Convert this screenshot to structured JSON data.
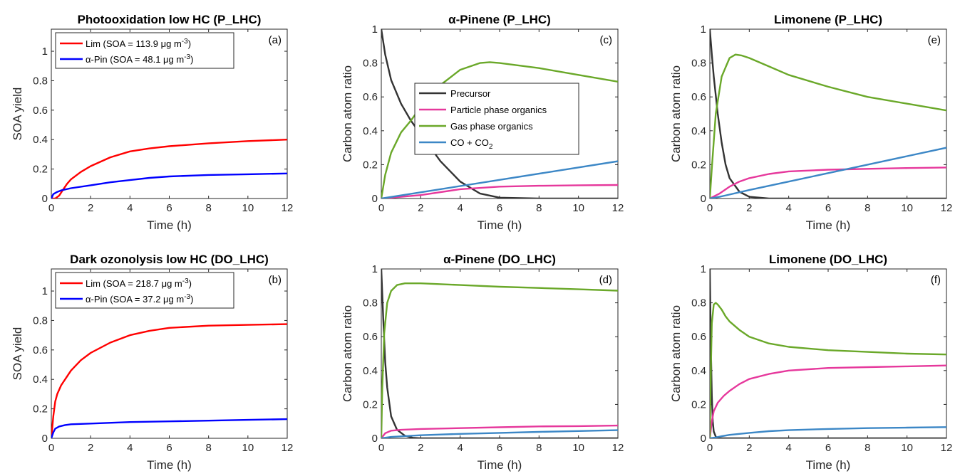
{
  "chart_data": [
    {
      "id": "a",
      "type": "line",
      "title": "Photooxidation low HC (P_LHC)",
      "panel_label": "(a)",
      "xlabel": "Time (h)",
      "ylabel": "SOA yield",
      "xlim": [
        0,
        12
      ],
      "ylim": [
        0,
        1.15
      ],
      "xticks": [
        0,
        2,
        4,
        6,
        8,
        10,
        12
      ],
      "yticks": [
        0,
        0.2,
        0.4,
        0.6,
        0.8,
        1
      ],
      "ytick_labels": [
        "0",
        "0.2",
        "0.4",
        "0.6",
        "0.8",
        "1"
      ],
      "legend": "top-left",
      "series": [
        {
          "name": "Lim (SOA = 113.9 μg m-3)",
          "color": "#ff0000",
          "x": [
            0,
            0.2,
            0.4,
            0.6,
            0.8,
            1.0,
            1.5,
            2,
            3,
            4,
            5,
            6,
            8,
            10,
            12
          ],
          "y": [
            0,
            0.0,
            0.02,
            0.06,
            0.1,
            0.13,
            0.18,
            0.22,
            0.28,
            0.32,
            0.34,
            0.355,
            0.375,
            0.39,
            0.4
          ]
        },
        {
          "name": "α-Pin (SOA = 48.1 μg m-3)",
          "color": "#0000ff",
          "x": [
            0,
            0.1,
            0.3,
            0.5,
            1,
            2,
            3,
            4,
            5,
            6,
            8,
            10,
            12
          ],
          "y": [
            0,
            0.03,
            0.045,
            0.055,
            0.07,
            0.09,
            0.11,
            0.125,
            0.14,
            0.15,
            0.16,
            0.165,
            0.17
          ]
        }
      ]
    },
    {
      "id": "b",
      "type": "line",
      "title": "Dark ozonolysis low HC (DO_LHC)",
      "panel_label": "(b)",
      "xlabel": "Time (h)",
      "ylabel": "SOA yield",
      "xlim": [
        0,
        12
      ],
      "ylim": [
        0,
        1.15
      ],
      "xticks": [
        0,
        2,
        4,
        6,
        8,
        10,
        12
      ],
      "yticks": [
        0,
        0.2,
        0.4,
        0.6,
        0.8,
        1
      ],
      "ytick_labels": [
        "0",
        "0.2",
        "0.4",
        "0.6",
        "0.8",
        "1"
      ],
      "legend": "top-left",
      "series": [
        {
          "name": "Lim (SOA = 218.7 μg m-3)",
          "color": "#ff0000",
          "x": [
            0,
            0.1,
            0.2,
            0.3,
            0.5,
            0.8,
            1,
            1.5,
            2,
            3,
            4,
            5,
            6,
            8,
            10,
            12
          ],
          "y": [
            0,
            0.15,
            0.25,
            0.3,
            0.36,
            0.42,
            0.46,
            0.53,
            0.58,
            0.65,
            0.7,
            0.73,
            0.75,
            0.765,
            0.77,
            0.775
          ]
        },
        {
          "name": "α-Pin (SOA = 37.2 μg m-3)",
          "color": "#0000ff",
          "x": [
            0,
            0.1,
            0.2,
            0.4,
            0.7,
            1,
            2,
            4,
            6,
            8,
            10,
            12
          ],
          "y": [
            0,
            0.04,
            0.065,
            0.08,
            0.09,
            0.095,
            0.1,
            0.11,
            0.115,
            0.12,
            0.125,
            0.13
          ]
        }
      ]
    },
    {
      "id": "c",
      "type": "line",
      "title": "α-Pinene (P_LHC)",
      "panel_label": "(c)",
      "xlabel": "Time (h)",
      "ylabel": "Carbon atom ratio",
      "xlim": [
        0,
        12
      ],
      "ylim": [
        0,
        1
      ],
      "xticks": [
        0,
        2,
        4,
        6,
        8,
        10,
        12
      ],
      "yticks": [
        0,
        0.2,
        0.4,
        0.6,
        0.8,
        1
      ],
      "ytick_labels": [
        "0",
        "0.2",
        "0.4",
        "0.6",
        "0.8",
        "1"
      ],
      "legend": "center",
      "series": [
        {
          "name": "Precursor",
          "color": "#333333",
          "x": [
            0,
            0.2,
            0.5,
            1,
            1.5,
            2,
            3,
            4,
            5,
            6,
            8,
            12
          ],
          "y": [
            1,
            0.85,
            0.7,
            0.56,
            0.46,
            0.38,
            0.22,
            0.1,
            0.03,
            0.005,
            0,
            0
          ]
        },
        {
          "name": "Particle phase organics",
          "color": "#e6389c",
          "x": [
            0,
            2,
            4,
            6,
            8,
            10,
            12
          ],
          "y": [
            0,
            0.02,
            0.055,
            0.07,
            0.075,
            0.078,
            0.08
          ]
        },
        {
          "name": "Gas phase organics",
          "color": "#6aa829",
          "x": [
            0,
            0.2,
            0.5,
            1,
            1.5,
            2,
            3,
            4,
            5,
            5.5,
            6,
            8,
            10,
            12
          ],
          "y": [
            0,
            0.14,
            0.27,
            0.39,
            0.46,
            0.54,
            0.67,
            0.76,
            0.8,
            0.805,
            0.8,
            0.77,
            0.73,
            0.69
          ]
        },
        {
          "name": "CO + CO2",
          "color": "#3c87c6",
          "x": [
            0,
            12
          ],
          "y": [
            0,
            0.22
          ]
        }
      ]
    },
    {
      "id": "d",
      "type": "line",
      "title": "α-Pinene (DO_LHC)",
      "panel_label": "(d)",
      "xlabel": "Time (h)",
      "ylabel": "Carbon atom ratio",
      "xlim": [
        0,
        12
      ],
      "ylim": [
        0,
        1
      ],
      "xticks": [
        0,
        2,
        4,
        6,
        8,
        10,
        12
      ],
      "yticks": [
        0,
        0.2,
        0.4,
        0.6,
        0.8,
        1
      ],
      "ytick_labels": [
        "0",
        "0.2",
        "0.4",
        "0.6",
        "0.8",
        "1"
      ],
      "legend": "none",
      "series": [
        {
          "name": "Precursor",
          "color": "#333333",
          "x": [
            0,
            0.1,
            0.2,
            0.3,
            0.5,
            0.8,
            1.2,
            1.6,
            2,
            12
          ],
          "y": [
            1,
            0.7,
            0.45,
            0.3,
            0.13,
            0.05,
            0.015,
            0.003,
            0,
            0
          ]
        },
        {
          "name": "Particle phase organics",
          "color": "#e6389c",
          "x": [
            0,
            0.2,
            0.5,
            1,
            2,
            4,
            6,
            8,
            10,
            12
          ],
          "y": [
            0,
            0.03,
            0.045,
            0.05,
            0.055,
            0.06,
            0.065,
            0.07,
            0.072,
            0.075
          ]
        },
        {
          "name": "Gas phase organics",
          "color": "#6aa829",
          "x": [
            0,
            0.05,
            0.15,
            0.3,
            0.5,
            0.8,
            1.2,
            2,
            4,
            6,
            8,
            10,
            12
          ],
          "y": [
            0,
            0.3,
            0.62,
            0.8,
            0.87,
            0.905,
            0.915,
            0.915,
            0.905,
            0.895,
            0.888,
            0.88,
            0.872
          ]
        },
        {
          "name": "CO + CO2",
          "color": "#3c87c6",
          "x": [
            0,
            0.5,
            2,
            4,
            6,
            8,
            10,
            12
          ],
          "y": [
            0,
            0.008,
            0.018,
            0.026,
            0.032,
            0.038,
            0.043,
            0.048
          ]
        }
      ]
    },
    {
      "id": "e",
      "type": "line",
      "title": "Limonene (P_LHC)",
      "panel_label": "(e)",
      "xlabel": "Time (h)",
      "ylabel": "Carbon atom ratio",
      "xlim": [
        0,
        12
      ],
      "ylim": [
        0,
        1
      ],
      "xticks": [
        0,
        2,
        4,
        6,
        8,
        10,
        12
      ],
      "yticks": [
        0,
        0.2,
        0.4,
        0.6,
        0.8,
        1
      ],
      "ytick_labels": [
        "0",
        "0.2",
        "0.4",
        "0.6",
        "0.8",
        "1"
      ],
      "legend": "none",
      "series": [
        {
          "name": "Precursor",
          "color": "#333333",
          "x": [
            0,
            0.1,
            0.2,
            0.4,
            0.6,
            0.8,
            1,
            1.5,
            2,
            3,
            12
          ],
          "y": [
            1,
            0.85,
            0.72,
            0.5,
            0.33,
            0.2,
            0.12,
            0.04,
            0.01,
            0,
            0
          ]
        },
        {
          "name": "Particle phase organics",
          "color": "#e6389c",
          "x": [
            0,
            0.5,
            1,
            1.5,
            2,
            3,
            4,
            6,
            8,
            10,
            12
          ],
          "y": [
            0,
            0.03,
            0.07,
            0.1,
            0.12,
            0.145,
            0.16,
            0.17,
            0.175,
            0.18,
            0.183
          ]
        },
        {
          "name": "Gas phase organics",
          "color": "#6aa829",
          "x": [
            0,
            0.1,
            0.3,
            0.6,
            1,
            1.3,
            1.6,
            2,
            3,
            4,
            6,
            8,
            10,
            12
          ],
          "y": [
            0,
            0.18,
            0.5,
            0.72,
            0.83,
            0.85,
            0.845,
            0.83,
            0.78,
            0.73,
            0.66,
            0.6,
            0.56,
            0.52
          ]
        },
        {
          "name": "CO + CO2",
          "color": "#3c87c6",
          "x": [
            0,
            0.5,
            2,
            4,
            6,
            8,
            10,
            12
          ],
          "y": [
            0,
            0.01,
            0.05,
            0.1,
            0.15,
            0.2,
            0.25,
            0.3
          ]
        }
      ]
    },
    {
      "id": "f",
      "type": "line",
      "title": "Limonene (DO_LHC)",
      "panel_label": "(f)",
      "xlabel": "Time (h)",
      "ylabel": "Carbon atom ratio",
      "xlim": [
        0,
        12
      ],
      "ylim": [
        0,
        1
      ],
      "xticks": [
        0,
        2,
        4,
        6,
        8,
        10,
        12
      ],
      "yticks": [
        0,
        0.2,
        0.4,
        0.6,
        0.8,
        1
      ],
      "ytick_labels": [
        "0",
        "0.2",
        "0.4",
        "0.6",
        "0.8",
        "1"
      ],
      "legend": "none",
      "series": [
        {
          "name": "Precursor",
          "color": "#333333",
          "x": [
            0,
            0.05,
            0.1,
            0.15,
            0.2,
            0.3,
            0.4,
            12
          ],
          "y": [
            1,
            0.55,
            0.25,
            0.1,
            0.04,
            0.01,
            0,
            0
          ]
        },
        {
          "name": "Particle phase organics",
          "color": "#e6389c",
          "x": [
            0,
            0.1,
            0.2,
            0.4,
            0.7,
            1,
            1.5,
            2,
            3,
            4,
            6,
            8,
            10,
            12
          ],
          "y": [
            0,
            0.1,
            0.16,
            0.21,
            0.25,
            0.28,
            0.32,
            0.35,
            0.38,
            0.4,
            0.415,
            0.42,
            0.425,
            0.43
          ]
        },
        {
          "name": "Gas phase organics",
          "color": "#6aa829",
          "x": [
            0,
            0.05,
            0.1,
            0.2,
            0.3,
            0.4,
            0.6,
            0.8,
            1,
            1.5,
            2,
            3,
            4,
            6,
            8,
            10,
            12
          ],
          "y": [
            0,
            0.4,
            0.68,
            0.79,
            0.8,
            0.79,
            0.76,
            0.72,
            0.69,
            0.64,
            0.6,
            0.56,
            0.54,
            0.52,
            0.51,
            0.5,
            0.495
          ]
        },
        {
          "name": "CO + CO2",
          "color": "#3c87c6",
          "x": [
            0,
            0.3,
            0.6,
            1,
            2,
            3,
            4,
            6,
            8,
            10,
            12
          ],
          "y": [
            0,
            0.005,
            0.012,
            0.02,
            0.032,
            0.042,
            0.048,
            0.055,
            0.06,
            0.063,
            0.066
          ]
        }
      ]
    }
  ]
}
